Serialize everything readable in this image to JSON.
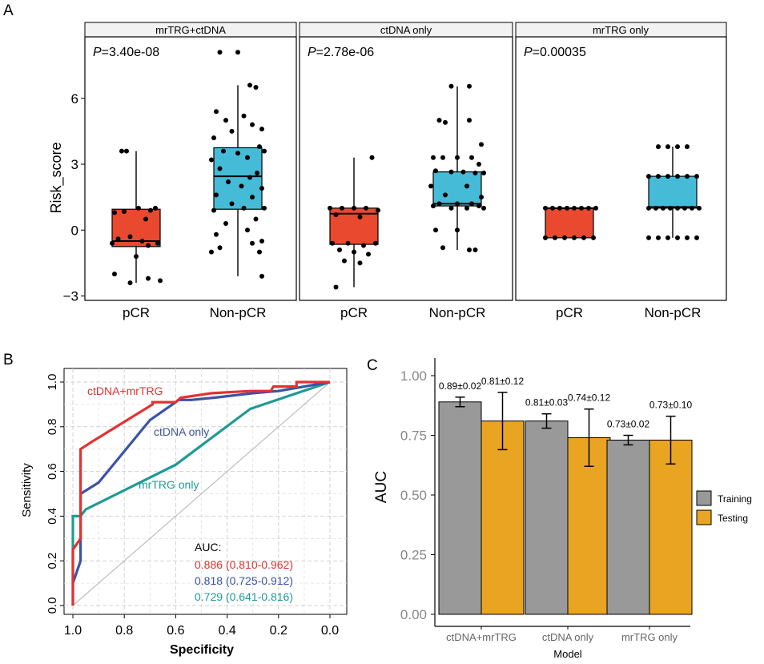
{
  "panel_labels": {
    "a": "A",
    "b": "B",
    "c": "C"
  },
  "colors": {
    "pcr": "#E8492F",
    "nonpcr": "#45BBD8",
    "combo": "#E63131",
    "ctdna": "#3B53A4",
    "mrtrg": "#1F9A93",
    "training": "#999999",
    "testing": "#E9A421",
    "diag": "#BEBEBE",
    "strip": "#F2F2F2"
  },
  "chart_data": [
    {
      "type": "box",
      "ylabel": "Risk_score",
      "ylim": [
        -3.2,
        8.8
      ],
      "yticks": [
        -3,
        0,
        3,
        6
      ],
      "categories": [
        "pCR",
        "Non-pCR"
      ],
      "facets": [
        {
          "strip": "mrTRG+ctDNA",
          "p_label": "P",
          "p_text": "=3.40e-08",
          "boxes": [
            {
              "q1": -0.75,
              "median": -0.5,
              "q3": 0.95,
              "lo": -2.4,
              "hi": 3.6
            },
            {
              "q1": 0.95,
              "median": 2.45,
              "q3": 3.75,
              "lo": -2.1,
              "hi": 6.6
            }
          ],
          "points": [
            [
              [
                -0.12,
                3.6
              ],
              [
                -0.08,
                3.6
              ],
              [
                0.02,
                1.0
              ],
              [
                0.12,
                0.9
              ],
              [
                0.16,
                1.0
              ],
              [
                -0.18,
                0.8
              ],
              [
                -0.1,
                0.85
              ],
              [
                0.08,
                0.5
              ],
              [
                -0.15,
                -0.4
              ],
              [
                0.05,
                -0.5
              ],
              [
                0.18,
                -0.6
              ],
              [
                -0.05,
                -0.3
              ],
              [
                0.1,
                -0.7
              ],
              [
                -0.2,
                -0.6
              ],
              [
                0.0,
                -1.2
              ],
              [
                -0.18,
                -2.0
              ],
              [
                -0.05,
                -2.4
              ],
              [
                0.1,
                -2.2
              ],
              [
                0.2,
                -2.3
              ]
            ],
            [
              [
                -0.15,
                8.1
              ],
              [
                0.0,
                8.1
              ],
              [
                0.1,
                6.6
              ],
              [
                0.15,
                6.5
              ],
              [
                -0.18,
                5.4
              ],
              [
                -0.1,
                5.0
              ],
              [
                0.05,
                5.2
              ],
              [
                0.12,
                4.8
              ],
              [
                0.2,
                4.6
              ],
              [
                -0.05,
                4.5
              ],
              [
                -0.2,
                4.2
              ],
              [
                0.18,
                3.8
              ],
              [
                0.22,
                3.6
              ],
              [
                -0.12,
                3.6
              ],
              [
                0.0,
                3.5
              ],
              [
                0.08,
                3.3
              ],
              [
                -0.22,
                3.2
              ],
              [
                -0.15,
                2.8
              ],
              [
                0.16,
                2.6
              ],
              [
                0.1,
                2.4
              ],
              [
                -0.08,
                2.2
              ],
              [
                0.03,
                2.0
              ],
              [
                0.2,
                1.9
              ],
              [
                -0.18,
                1.6
              ],
              [
                0.12,
                1.5
              ],
              [
                -0.05,
                1.2
              ],
              [
                0.05,
                1.0
              ],
              [
                0.22,
                1.0
              ],
              [
                -0.2,
                0.9
              ],
              [
                0.15,
                0.5
              ],
              [
                -0.1,
                0.3
              ],
              [
                0.08,
                0.0
              ],
              [
                -0.18,
                -0.2
              ],
              [
                0.2,
                -0.5
              ],
              [
                0.12,
                -0.6
              ],
              [
                -0.15,
                -0.8
              ],
              [
                0.18,
                -1.0
              ],
              [
                -0.22,
                -1.0
              ],
              [
                0.2,
                -2.1
              ]
            ]
          ]
        },
        {
          "strip": "ctDNA only",
          "p_label": "P",
          "p_text": "=2.78e-06",
          "boxes": [
            {
              "q1": -0.65,
              "median": 0.75,
              "q3": 1.0,
              "lo": -2.6,
              "hi": 3.3
            },
            {
              "q1": 1.1,
              "median": 1.2,
              "q3": 2.65,
              "lo": -0.9,
              "hi": 6.55
            }
          ],
          "points": [
            [
              [
                0.15,
                3.3
              ],
              [
                -0.2,
                1.0
              ],
              [
                -0.1,
                1.0
              ],
              [
                0.0,
                1.0
              ],
              [
                0.1,
                1.0
              ],
              [
                0.2,
                0.9
              ],
              [
                -0.15,
                0.7
              ],
              [
                0.05,
                0.6
              ],
              [
                -0.18,
                -0.6
              ],
              [
                -0.05,
                -0.6
              ],
              [
                0.08,
                -0.7
              ],
              [
                0.18,
                -0.6
              ],
              [
                -0.12,
                -0.9
              ],
              [
                0.0,
                -1.0
              ],
              [
                0.12,
                -1.1
              ],
              [
                -0.08,
                -1.4
              ],
              [
                0.05,
                -1.5
              ],
              [
                -0.15,
                -2.6
              ]
            ],
            [
              [
                -0.05,
                6.55
              ],
              [
                0.1,
                6.55
              ],
              [
                -0.15,
                5.0
              ],
              [
                0.1,
                5.0
              ],
              [
                -0.1,
                4.9
              ],
              [
                0.2,
                3.9
              ],
              [
                -0.2,
                3.3
              ],
              [
                0.0,
                3.3
              ],
              [
                0.12,
                3.3
              ],
              [
                -0.12,
                3.3
              ],
              [
                0.18,
                3.0
              ],
              [
                -0.18,
                2.7
              ],
              [
                -0.05,
                2.65
              ],
              [
                0.05,
                2.65
              ],
              [
                0.15,
                2.6
              ],
              [
                0.22,
                2.6
              ],
              [
                -0.22,
                2.0
              ],
              [
                0.08,
                2.0
              ],
              [
                -0.1,
                1.6
              ],
              [
                0.2,
                1.5
              ],
              [
                -0.15,
                1.2
              ],
              [
                0.0,
                1.2
              ],
              [
                0.12,
                1.2
              ],
              [
                -0.2,
                1.1
              ],
              [
                0.18,
                1.1
              ],
              [
                -0.05,
                1.0
              ],
              [
                0.08,
                1.0
              ],
              [
                0.22,
                1.0
              ],
              [
                -0.18,
                0.0
              ],
              [
                0.0,
                0.0
              ],
              [
                -0.12,
                -0.8
              ],
              [
                0.1,
                -0.9
              ],
              [
                0.15,
                -0.9
              ]
            ]
          ]
        },
        {
          "strip": "mrTRG only",
          "p_label": "P",
          "p_text": "=0.00035",
          "boxes": [
            {
              "q1": -0.35,
              "median": 1.0,
              "q3": 1.0,
              "lo": -0.35,
              "hi": 1.0
            },
            {
              "q1": 1.0,
              "median": 1.05,
              "q3": 2.45,
              "lo": -0.35,
              "hi": 3.8
            }
          ],
          "points": [
            [
              [
                -0.2,
                1.0
              ],
              [
                -0.14,
                1.0
              ],
              [
                -0.08,
                1.0
              ],
              [
                -0.02,
                1.0
              ],
              [
                0.04,
                1.0
              ],
              [
                0.1,
                1.0
              ],
              [
                0.16,
                1.0
              ],
              [
                0.22,
                1.0
              ],
              [
                -0.2,
                -0.35
              ],
              [
                -0.12,
                -0.35
              ],
              [
                -0.04,
                -0.35
              ],
              [
                0.04,
                -0.35
              ],
              [
                0.12,
                -0.35
              ],
              [
                0.2,
                -0.35
              ]
            ],
            [
              [
                -0.12,
                3.8
              ],
              [
                -0.04,
                3.8
              ],
              [
                0.04,
                3.8
              ],
              [
                0.12,
                3.8
              ],
              [
                -0.2,
                2.45
              ],
              [
                -0.12,
                2.45
              ],
              [
                -0.04,
                2.45
              ],
              [
                0.04,
                2.45
              ],
              [
                0.12,
                2.45
              ],
              [
                0.2,
                2.45
              ],
              [
                -0.2,
                1.0
              ],
              [
                -0.14,
                1.0
              ],
              [
                -0.08,
                1.0
              ],
              [
                -0.02,
                1.0
              ],
              [
                0.04,
                1.0
              ],
              [
                0.1,
                1.0
              ],
              [
                0.16,
                1.0
              ],
              [
                0.22,
                1.0
              ],
              [
                -0.2,
                -0.35
              ],
              [
                -0.12,
                -0.35
              ],
              [
                -0.04,
                -0.35
              ],
              [
                0.04,
                -0.35
              ],
              [
                0.12,
                -0.35
              ],
              [
                0.2,
                -0.35
              ]
            ]
          ]
        }
      ]
    },
    {
      "type": "line",
      "xlabel": "Specificity",
      "ylabel": "Sensitivity",
      "xlim": [
        1.0,
        0.0
      ],
      "ylim": [
        0.0,
        1.0
      ],
      "xticks": [
        1.0,
        0.8,
        0.6,
        0.4,
        0.2,
        0.0
      ],
      "xtick_labels": [
        "1.0",
        "0.8",
        "0.6",
        "0.4",
        "0.2",
        "0.0"
      ],
      "yticks": [
        0.0,
        0.2,
        0.4,
        0.6,
        0.8,
        1.0
      ],
      "ytick_labels": [
        "0.0",
        "0.2",
        "0.4",
        "0.6",
        "0.8",
        "1.0"
      ],
      "auc_title": "AUC:",
      "series": [
        {
          "name": "ctDNA+mrTRG",
          "auc": "0.886 (0.810-0.962)",
          "color_key": "combo",
          "x": [
            1.0,
            1.0,
            0.97,
            0.97,
            0.93,
            0.69,
            0.69,
            0.6,
            0.58,
            0.46,
            0.31,
            0.23,
            0.22,
            0.13,
            0.13,
            0.0
          ],
          "y": [
            0.0,
            0.25,
            0.3,
            0.7,
            0.73,
            0.9,
            0.91,
            0.91,
            0.93,
            0.95,
            0.96,
            0.96,
            0.98,
            0.98,
            1.0,
            1.0
          ]
        },
        {
          "name": "ctDNA only",
          "auc": "0.818 (0.725-0.912)",
          "color_key": "ctdna",
          "x": [
            1.0,
            0.97,
            0.97,
            0.9,
            0.7,
            0.6,
            0.59,
            0.54,
            0.45,
            0.3,
            0.2,
            0.0
          ],
          "y": [
            0.1,
            0.2,
            0.5,
            0.55,
            0.83,
            0.91,
            0.92,
            0.92,
            0.93,
            0.95,
            0.96,
            1.0
          ]
        },
        {
          "name": "mrTRG only",
          "auc": "0.729 (0.641-0.816)",
          "color_key": "mrtrg",
          "x": [
            1.0,
            1.0,
            0.97,
            0.95,
            0.6,
            0.31,
            0.0
          ],
          "y": [
            0.0,
            0.4,
            0.4,
            0.43,
            0.63,
            0.88,
            1.0
          ]
        }
      ],
      "curve_labels": [
        "ctDNA+mrTRG",
        "ctDNA only",
        "mrTRG only"
      ]
    },
    {
      "type": "bar",
      "xlabel": "Model",
      "ylabel": "AUC",
      "ylim": [
        0.0,
        1.0
      ],
      "yticks": [
        0.0,
        0.25,
        0.5,
        0.75,
        1.0
      ],
      "ytick_labels": [
        "0.00",
        "0.25",
        "0.50",
        "0.75",
        "1.00"
      ],
      "categories": [
        "ctDNA+mrTRG",
        "ctDNA only",
        "mrTRG only"
      ],
      "series": [
        {
          "name": "Training",
          "color_key": "training",
          "values": [
            0.89,
            0.81,
            0.73
          ],
          "err": [
            0.02,
            0.03,
            0.02
          ],
          "labels": [
            "0.89±0.02",
            "0.81±0.03",
            "0.73±0.02"
          ]
        },
        {
          "name": "Testing",
          "color_key": "testing",
          "values": [
            0.81,
            0.74,
            0.73
          ],
          "err": [
            0.12,
            0.12,
            0.1
          ],
          "labels": [
            "0.81±0.12",
            "0.74±0.12",
            "0.73±0.10"
          ]
        }
      ],
      "legend": [
        "Training",
        "Testing"
      ]
    }
  ]
}
